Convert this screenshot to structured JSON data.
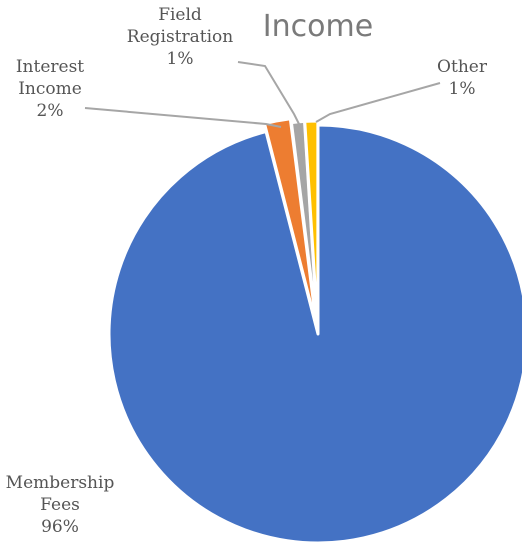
{
  "chart_data": {
    "type": "pie",
    "title": "Income",
    "slices": [
      {
        "label_lines": [
          "Membership",
          "Fees"
        ],
        "value_label": "96%",
        "value": 96,
        "color": "#4472C4"
      },
      {
        "label_lines": [
          "Interest",
          "Income"
        ],
        "value_label": "2%",
        "value": 2,
        "color": "#ED7D31"
      },
      {
        "label_lines": [
          "Field",
          "Registration"
        ],
        "value_label": "1%",
        "value": 1,
        "color": "#A5A5A5"
      },
      {
        "label_lines": [
          "Other"
        ],
        "value_label": "1%",
        "value": 1,
        "color": "#FFC000"
      }
    ],
    "legend": "none"
  }
}
